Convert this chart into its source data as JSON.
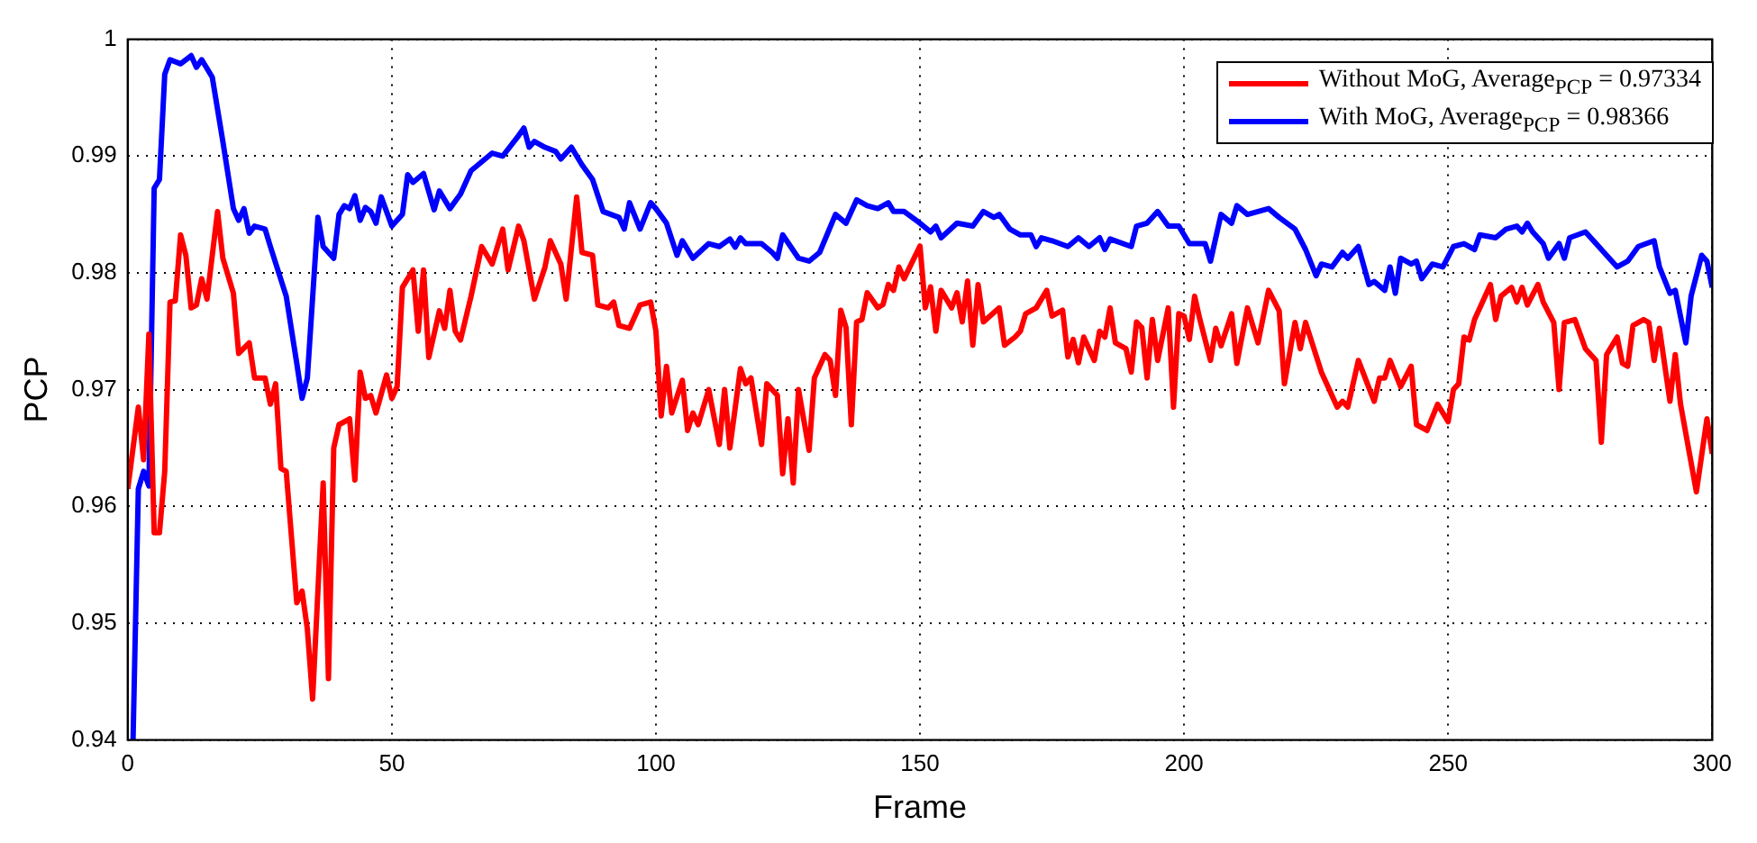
{
  "chart_data": {
    "type": "line",
    "xlabel": "Frame",
    "ylabel": "PCP",
    "xlim": [
      0,
      300
    ],
    "xticks": [
      0,
      50,
      100,
      150,
      200,
      250,
      300
    ],
    "ylim": [
      0.94,
      1
    ],
    "yticks": [
      0.94,
      0.95,
      0.96,
      0.97,
      0.98,
      0.99,
      1
    ],
    "grid": true,
    "legend": "top right",
    "marker": "none",
    "line_style": "solid",
    "series": [
      {
        "name": "Without MoG, Average$_{PCP}$ = 0.97334",
        "color": "#ff0000",
        "x": [
          0,
          2,
          3,
          4,
          5,
          6,
          7,
          8,
          9,
          10,
          11,
          12,
          13,
          14,
          15,
          17,
          18,
          20,
          21,
          23,
          24,
          26,
          27,
          28,
          29,
          30,
          32,
          33,
          34,
          35,
          37,
          38,
          39,
          40,
          42,
          43,
          44,
          45,
          46,
          47,
          49,
          50,
          51,
          52,
          54,
          55,
          56,
          57,
          59,
          60,
          61,
          62,
          63,
          65,
          67,
          69,
          71,
          72,
          74,
          75,
          77,
          79,
          80,
          82,
          83,
          85,
          86,
          88,
          89,
          91,
          92,
          93,
          95,
          97,
          99,
          100,
          101,
          102,
          103,
          105,
          106,
          107,
          108,
          110,
          112,
          113,
          114,
          116,
          117,
          118,
          120,
          121,
          123,
          124,
          125,
          126,
          127,
          129,
          130,
          132,
          133,
          134,
          135,
          136,
          137,
          138,
          139,
          140,
          142,
          143,
          144,
          145,
          146,
          147,
          150,
          151,
          152,
          153,
          154,
          156,
          157,
          158,
          159,
          160,
          161,
          162,
          165,
          166,
          168,
          169,
          170,
          172,
          174,
          175,
          177,
          178,
          179,
          180,
          181,
          183,
          184,
          185,
          186,
          187,
          189,
          190,
          191,
          192,
          193,
          194,
          195,
          197,
          198,
          199,
          200,
          201,
          202,
          203,
          205,
          206,
          207,
          209,
          210,
          212,
          214,
          216,
          218,
          219,
          221,
          222,
          223,
          226,
          229,
          230,
          231,
          233,
          236,
          237,
          238,
          239,
          241,
          243,
          244,
          246,
          248,
          250,
          251,
          252,
          253,
          254,
          255,
          258,
          259,
          260,
          262,
          263,
          264,
          265,
          267,
          268,
          270,
          271,
          272,
          274,
          276,
          278,
          279,
          280,
          282,
          283,
          284,
          285,
          287,
          288,
          289,
          290,
          292,
          293,
          294,
          297,
          299,
          300
        ],
        "values": [
          0.9615,
          0.9685,
          0.964,
          0.97475,
          0.95775,
          0.95775,
          0.963,
          0.9775,
          0.9776,
          0.98325,
          0.9815,
          0.977,
          0.97725,
          0.9795,
          0.97775,
          0.98525,
          0.98125,
          0.97825,
          0.9731,
          0.974,
          0.971,
          0.971,
          0.96875,
          0.9705,
          0.96325,
          0.963,
          0.95175,
          0.95275,
          0.9495,
          0.9435,
          0.962,
          0.94525,
          0.965,
          0.967,
          0.9675,
          0.96225,
          0.9715,
          0.96925,
          0.9695,
          0.968,
          0.97125,
          0.96925,
          0.97025,
          0.97875,
          0.98025,
          0.975,
          0.98025,
          0.97275,
          0.97675,
          0.97525,
          0.9785,
          0.975,
          0.97425,
          0.978,
          0.98225,
          0.98075,
          0.98375,
          0.98025,
          0.984,
          0.98275,
          0.97775,
          0.9805,
          0.98275,
          0.98075,
          0.97775,
          0.9865,
          0.98175,
          0.9815,
          0.97725,
          0.977,
          0.9775,
          0.9755,
          0.97525,
          0.97725,
          0.9775,
          0.975,
          0.96775,
          0.972,
          0.968,
          0.9708,
          0.9665,
          0.968,
          0.967,
          0.97,
          0.9653,
          0.97,
          0.965,
          0.9718,
          0.9705,
          0.971,
          0.9653,
          0.9705,
          0.9695,
          0.9628,
          0.9675,
          0.962,
          0.97,
          0.9648,
          0.971,
          0.973,
          0.9725,
          0.9695,
          0.9768,
          0.9753,
          0.967,
          0.9758,
          0.976,
          0.9783,
          0.977,
          0.9773,
          0.979,
          0.9785,
          0.9805,
          0.9795,
          0.9823,
          0.977,
          0.9788,
          0.975,
          0.9785,
          0.977,
          0.9783,
          0.9758,
          0.9793,
          0.9738,
          0.979,
          0.9758,
          0.977,
          0.9738,
          0.9745,
          0.975,
          0.9765,
          0.977,
          0.9785,
          0.9763,
          0.9768,
          0.9728,
          0.9743,
          0.9723,
          0.9745,
          0.9725,
          0.975,
          0.9745,
          0.977,
          0.974,
          0.9735,
          0.9715,
          0.9758,
          0.9753,
          0.971,
          0.976,
          0.9725,
          0.977,
          0.9685,
          0.9765,
          0.9763,
          0.9743,
          0.978,
          0.976,
          0.9725,
          0.97525,
          0.97375,
          0.9765,
          0.97225,
          0.977,
          0.974,
          0.9785,
          0.97675,
          0.9705,
          0.97575,
          0.9735,
          0.97575,
          0.9715,
          0.9685,
          0.969,
          0.9685,
          0.9725,
          0.969,
          0.971,
          0.971,
          0.9725,
          0.97025,
          0.972,
          0.967,
          0.9665,
          0.96875,
          0.96725,
          0.97,
          0.9705,
          0.9745,
          0.97425,
          0.976,
          0.979,
          0.976,
          0.978,
          0.97875,
          0.9775,
          0.97875,
          0.97725,
          0.979,
          0.9775,
          0.97575,
          0.97,
          0.97575,
          0.976,
          0.9735,
          0.9725,
          0.9655,
          0.973,
          0.9745,
          0.97225,
          0.972,
          0.9755,
          0.976,
          0.97575,
          0.9725,
          0.97525,
          0.969,
          0.973,
          0.96875,
          0.96125,
          0.9675,
          0.9645
        ]
      },
      {
        "name": "With MoG, Average$_{PCP}$ = 0.98366",
        "color": "#0000ff",
        "x": [
          1,
          2,
          3,
          4,
          5,
          6,
          7,
          8,
          10,
          12,
          13,
          14,
          16,
          18,
          20,
          21,
          22,
          23,
          24,
          26,
          27,
          30,
          32,
          33,
          34,
          36,
          37,
          39,
          40,
          41,
          42,
          43,
          44,
          45,
          46,
          47,
          48,
          50,
          52,
          53,
          54,
          56,
          58,
          59,
          61,
          63,
          65,
          67,
          69,
          71,
          74,
          75,
          76,
          77,
          79,
          81,
          82,
          84,
          86,
          88,
          90,
          93,
          94,
          95,
          97,
          99,
          100,
          102,
          104,
          105,
          107,
          110,
          112,
          114,
          115,
          116,
          117,
          120,
          122,
          123,
          124,
          127,
          129,
          131,
          134,
          136,
          138,
          140,
          142,
          144,
          145,
          147,
          150,
          152,
          153,
          154,
          157,
          160,
          162,
          164,
          165,
          167,
          169,
          171,
          172,
          173,
          175,
          178,
          180,
          182,
          184,
          185,
          186,
          190,
          191,
          193,
          195,
          197,
          199,
          201,
          202,
          204,
          205,
          207,
          209,
          210,
          212,
          216,
          218,
          221,
          223,
          225,
          226,
          228,
          230,
          231,
          233,
          235,
          236,
          238,
          239,
          240,
          241,
          243,
          244,
          245,
          247,
          249,
          251,
          253,
          255,
          256,
          259,
          261,
          263,
          264,
          265,
          266,
          268,
          269,
          271,
          272,
          273,
          276,
          280,
          282,
          284,
          286,
          289,
          290,
          292,
          293,
          295,
          296,
          298,
          299,
          300
        ],
        "values": [
          0.94,
          0.9615,
          0.963,
          0.96175,
          0.98725,
          0.988,
          0.997,
          0.99825,
          0.9979,
          0.9986,
          0.9976,
          0.99825,
          0.99675,
          0.99125,
          0.9855,
          0.9845,
          0.9855,
          0.9834,
          0.984,
          0.98375,
          0.98225,
          0.978,
          0.97225,
          0.96925,
          0.971,
          0.98475,
          0.98225,
          0.98125,
          0.985,
          0.98575,
          0.9855,
          0.9866,
          0.9845,
          0.9856,
          0.98525,
          0.98425,
          0.9865,
          0.984,
          0.985,
          0.9884,
          0.98775,
          0.9885,
          0.9854,
          0.987,
          0.9855,
          0.98675,
          0.98875,
          0.9895,
          0.99025,
          0.99,
          0.99175,
          0.9924,
          0.99075,
          0.99125,
          0.99075,
          0.9904,
          0.98975,
          0.99075,
          0.98925,
          0.988,
          0.98525,
          0.98475,
          0.98375,
          0.986,
          0.98375,
          0.986,
          0.9855,
          0.98425,
          0.9815,
          0.98275,
          0.98125,
          0.9825,
          0.98225,
          0.9829,
          0.9822,
          0.983,
          0.9825,
          0.9825,
          0.98175,
          0.98125,
          0.98325,
          0.98125,
          0.981,
          0.98175,
          0.985,
          0.98425,
          0.98625,
          0.98575,
          0.9855,
          0.986,
          0.98525,
          0.98525,
          0.98425,
          0.9835,
          0.984,
          0.983,
          0.98425,
          0.984,
          0.98525,
          0.98475,
          0.985,
          0.98375,
          0.98325,
          0.98325,
          0.98225,
          0.983,
          0.98275,
          0.98225,
          0.983,
          0.98225,
          0.983,
          0.982,
          0.9829,
          0.98225,
          0.984,
          0.98425,
          0.98525,
          0.984,
          0.984,
          0.9825,
          0.9825,
          0.9825,
          0.981,
          0.985,
          0.98425,
          0.98575,
          0.985,
          0.9855,
          0.98475,
          0.98375,
          0.982,
          0.97975,
          0.98075,
          0.9805,
          0.98175,
          0.98125,
          0.98225,
          0.979,
          0.97925,
          0.9785,
          0.9805,
          0.97825,
          0.98125,
          0.98075,
          0.981,
          0.9795,
          0.98075,
          0.9805,
          0.98225,
          0.9825,
          0.982,
          0.98325,
          0.983,
          0.98375,
          0.984,
          0.9835,
          0.98425,
          0.9835,
          0.9825,
          0.98125,
          0.9825,
          0.98125,
          0.983,
          0.9835,
          0.9815,
          0.9805,
          0.981,
          0.98225,
          0.98275,
          0.9805,
          0.97825,
          0.9785,
          0.974,
          0.978,
          0.9815,
          0.981,
          0.97875
        ]
      }
    ]
  }
}
